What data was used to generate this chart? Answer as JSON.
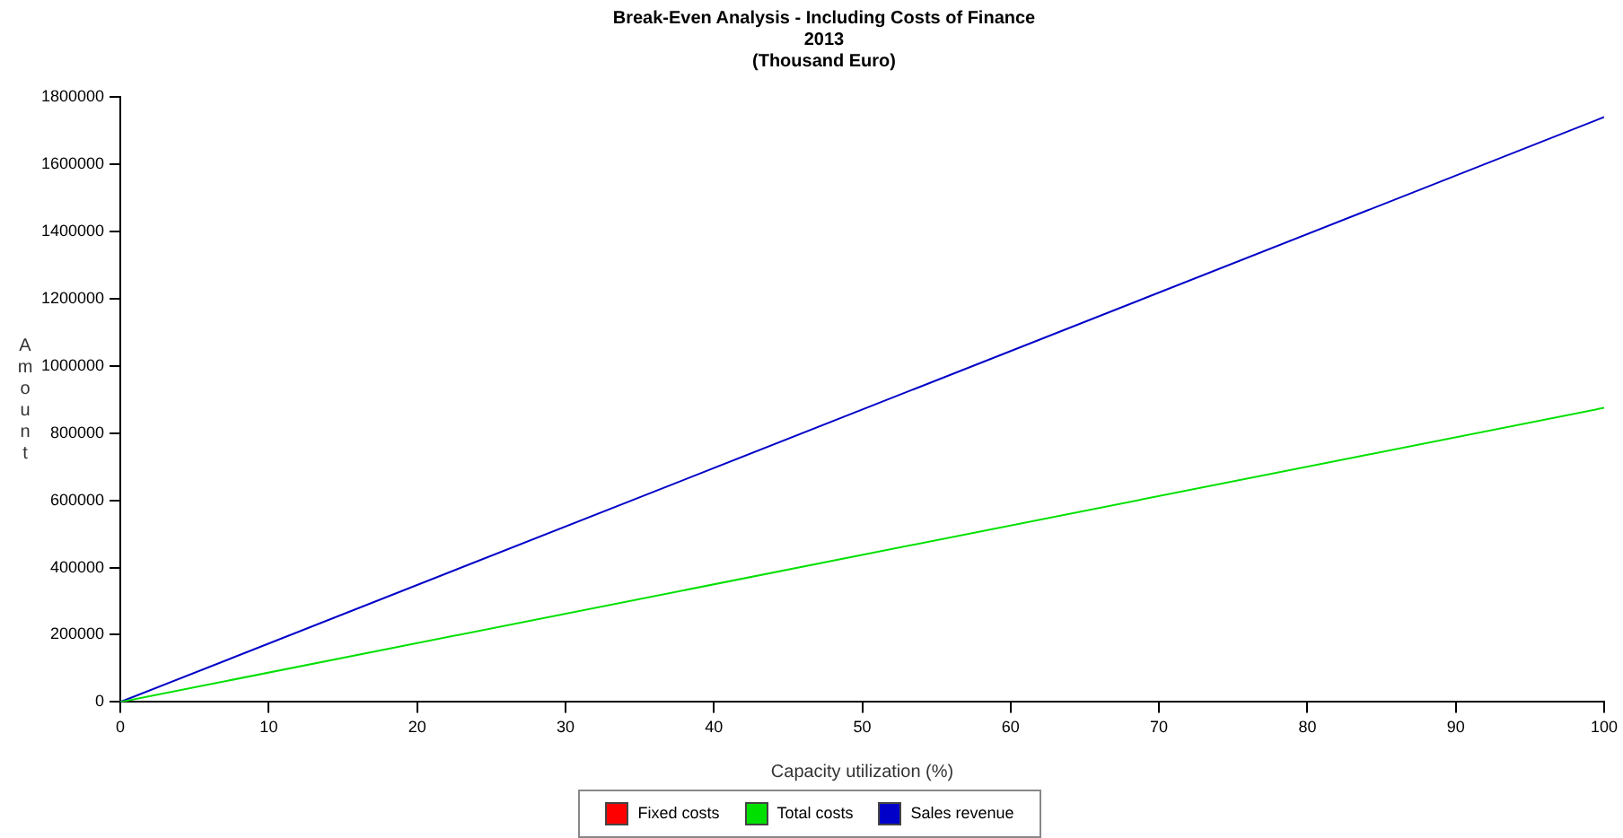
{
  "chart_data": {
    "type": "line",
    "title": "Break-Even Analysis - Including Costs of Finance",
    "subtitle": [
      "2013",
      "(Thousand Euro)"
    ],
    "xlabel": "Capacity utilization (%)",
    "ylabel": "Amount",
    "x": [
      0,
      100
    ],
    "series": [
      {
        "name": "Fixed costs",
        "color": "#ff0000",
        "values": [
          null,
          null
        ]
      },
      {
        "name": "Total costs",
        "color": "#00e000",
        "values": [
          0,
          875000
        ]
      },
      {
        "name": "Sales revenue",
        "color": "#0000c8",
        "values": [
          0,
          1740000
        ]
      }
    ],
    "xlim": [
      0,
      100
    ],
    "xticks": [
      0,
      10,
      20,
      30,
      40,
      50,
      60,
      70,
      80,
      90,
      100
    ],
    "ylim": [
      0,
      1800000
    ],
    "yticks": [
      0,
      200000,
      400000,
      600000,
      800000,
      1000000,
      1200000,
      1400000,
      1600000,
      1800000
    ],
    "grid": false,
    "legend": "bottom",
    "marker": "none",
    "line_style": "solid"
  }
}
